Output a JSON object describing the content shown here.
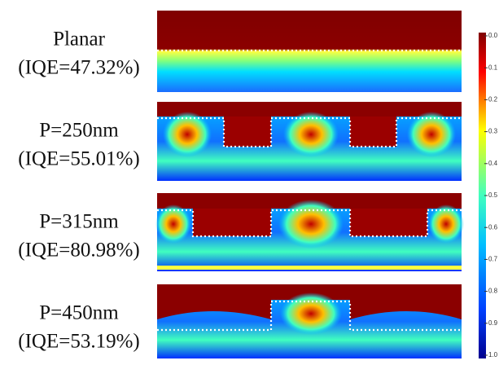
{
  "panels": [
    {
      "name": "Planar",
      "iqe": "(IQE=47.32%)"
    },
    {
      "name": "P=250nm",
      "iqe": "(IQE=55.01%)"
    },
    {
      "name": "P=315nm",
      "iqe": "(IQE=80.98%)"
    },
    {
      "name": "P=450nm",
      "iqe": "(IQE=53.19%)"
    }
  ],
  "colorbar": {
    "ticks": [
      "0.0",
      "0.1",
      "0.2",
      "0.3",
      "0.4",
      "0.5",
      "0.6",
      "0.7",
      "0.8",
      "0.9",
      "1.0"
    ]
  }
}
